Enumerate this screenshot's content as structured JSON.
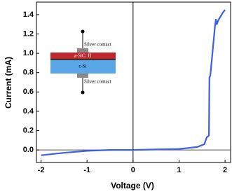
{
  "chart_data": {
    "type": "line",
    "x_label": "Voltage (V)",
    "y_label": "Current (mA)",
    "x": [
      -2,
      -1.5,
      -1,
      -0.5,
      0,
      0.5,
      1,
      1.4,
      1.55,
      1.6,
      1.63,
      1.65,
      1.66,
      1.68,
      1.78,
      1.8,
      1.82,
      1.85,
      1.9,
      1.95,
      2.0
    ],
    "values": [
      -0.055,
      -0.03,
      -0.01,
      0,
      0,
      0.005,
      0.01,
      0.03,
      0.06,
      0.13,
      0.14,
      0.15,
      0.75,
      0.77,
      1.28,
      1.35,
      1.3,
      1.34,
      1.38,
      1.42,
      1.45
    ],
    "color": "#3d5fe6",
    "xlim": [
      -2.1,
      2.12
    ],
    "ylim": [
      -0.13,
      1.53
    ],
    "xticks": [
      -2,
      -1,
      0,
      1,
      2
    ],
    "yticks": [
      {
        "value": 0,
        "label": "0.0"
      },
      {
        "value": 0.2,
        "label": "0.2"
      },
      {
        "value": 0.4,
        "label": "0.4"
      },
      {
        "value": 0.6,
        "label": "0.6"
      },
      {
        "value": 0.8,
        "label": "0.8"
      },
      {
        "value": 1.0,
        "label": "1.0"
      },
      {
        "value": 1.2,
        "label": "1.2"
      },
      {
        "value": 1.4,
        "label": "1.4"
      }
    ],
    "inset": {
      "top_contact": "Silver contact",
      "layer_1": "a-SiC: H",
      "layer_2": "c-Si",
      "bottom_contact": "Silver contact"
    }
  }
}
